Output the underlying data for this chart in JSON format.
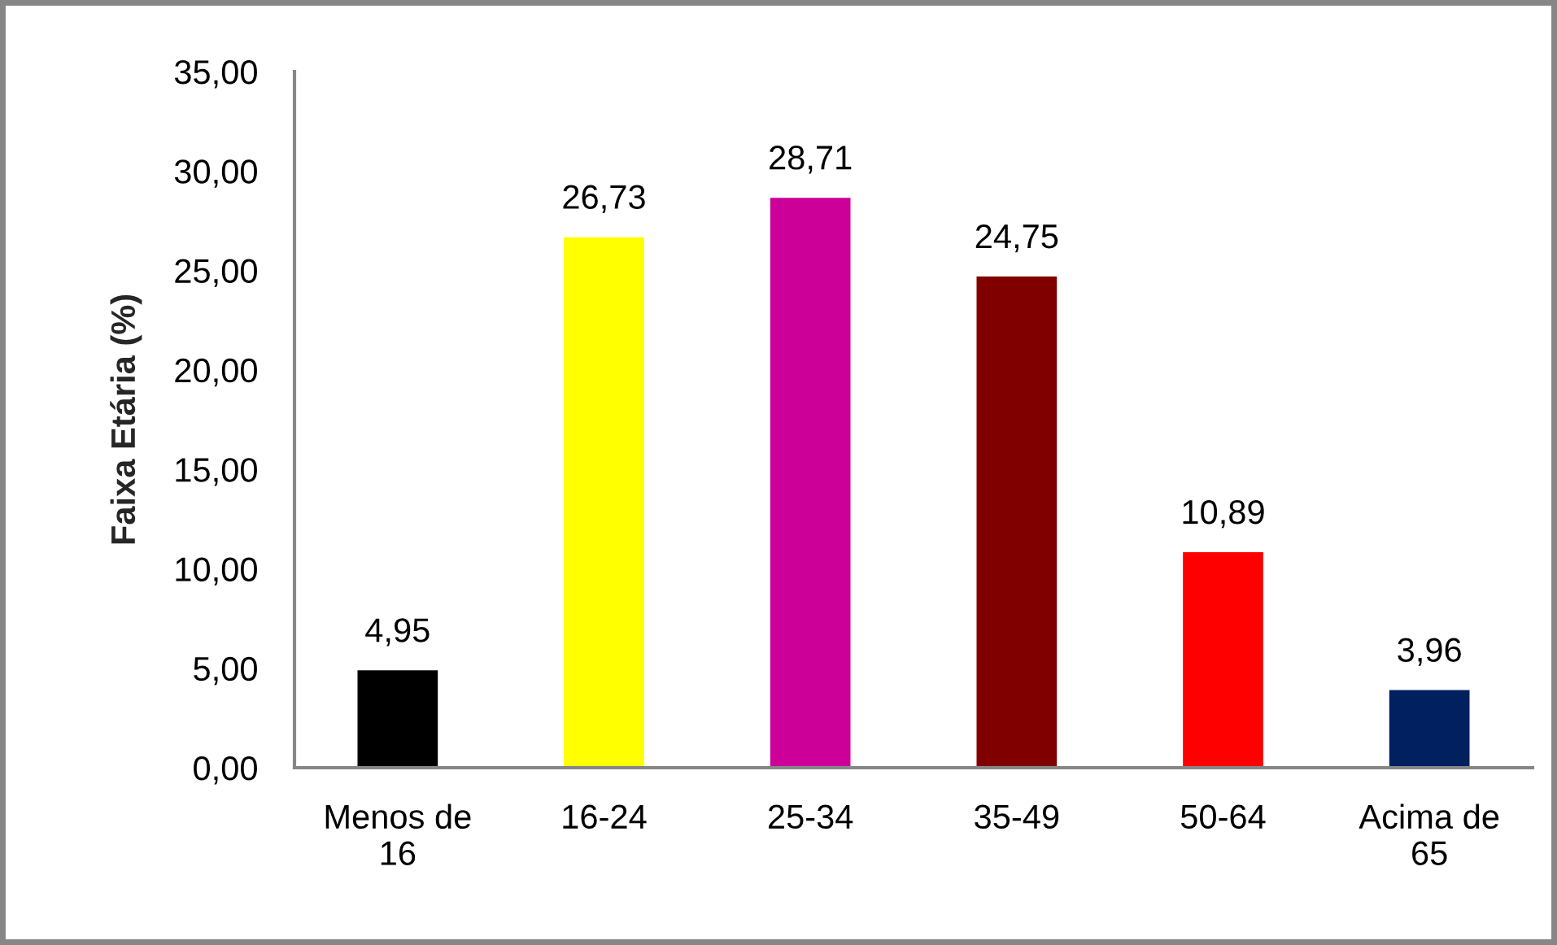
{
  "chart_data": {
    "type": "bar",
    "ylabel": "Faixa Etária (%)",
    "categories": [
      "Menos de 16",
      "16-24",
      "25-34",
      "35-49",
      "50-64",
      "Acima de 65"
    ],
    "values": [
      4.95,
      26.73,
      28.71,
      24.75,
      10.89,
      3.96
    ],
    "colors": [
      "#000000",
      "#ffff00",
      "#cc0099",
      "#800000",
      "#ff0000",
      "#002060"
    ],
    "value_labels": [
      "4,95",
      "26,73",
      "28,71",
      "24,75",
      "10,89",
      "3,96"
    ],
    "ylim": [
      0,
      35
    ],
    "yticks": [
      {
        "value": 0,
        "label": "0,00"
      },
      {
        "value": 5,
        "label": "5,00"
      },
      {
        "value": 10,
        "label": "10,00"
      },
      {
        "value": 15,
        "label": "15,00"
      },
      {
        "value": 20,
        "label": "20,00"
      },
      {
        "value": 25,
        "label": "25,00"
      },
      {
        "value": 30,
        "label": "30,00"
      },
      {
        "value": 35,
        "label": "35,00"
      }
    ],
    "grid": false,
    "legend": false
  }
}
